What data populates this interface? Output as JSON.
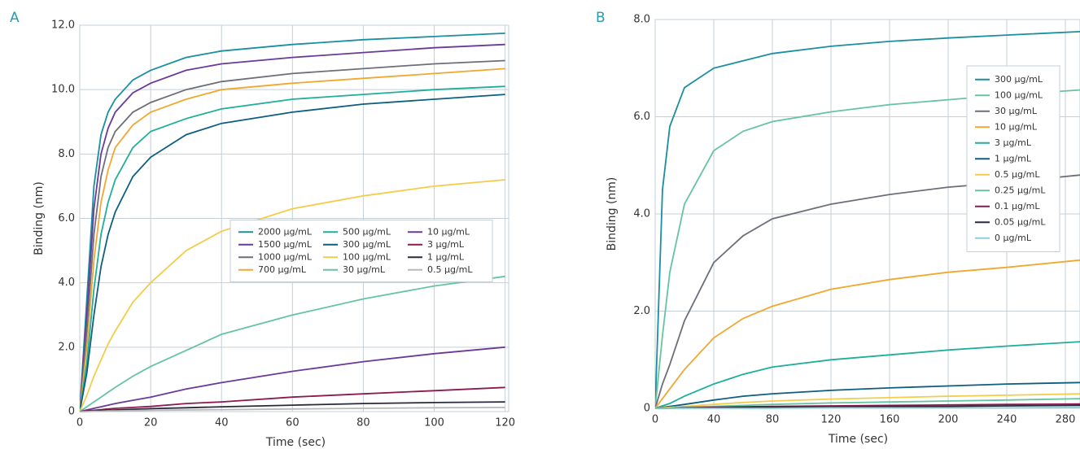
{
  "chart_data": [
    {
      "type": "line",
      "panel_label": "A",
      "xlabel": "Time (sec)",
      "ylabel": "Binding (nm)",
      "x": [
        0,
        2,
        4,
        6,
        8,
        10,
        15,
        20,
        30,
        40,
        60,
        80,
        100,
        120
      ],
      "xlim": [
        0,
        121
      ],
      "xticks": [
        0,
        20,
        40,
        60,
        80,
        100,
        120
      ],
      "ylim": [
        0,
        12
      ],
      "yticks": [
        0,
        {
          "value": 2,
          "label": "2.0"
        },
        {
          "value": 4,
          "label": "4.0"
        },
        {
          "value": 6,
          "label": "6.0"
        },
        {
          "value": 8,
          "label": "8.0"
        },
        {
          "value": 10,
          "label": "10.0"
        },
        {
          "value": 12,
          "label": "12.0"
        }
      ],
      "grid": true,
      "legend": "center right",
      "legend_columns": 3,
      "series": [
        {
          "name": "2000 µg/mL",
          "color": "#1a8fa0",
          "values": [
            0,
            3.5,
            7.0,
            8.6,
            9.3,
            9.7,
            10.3,
            10.6,
            11.0,
            11.2,
            11.4,
            11.55,
            11.65,
            11.75
          ]
        },
        {
          "name": "1500 µg/mL",
          "color": "#6a3a9a",
          "values": [
            0,
            3.0,
            6.3,
            8.0,
            8.8,
            9.3,
            9.9,
            10.2,
            10.6,
            10.8,
            11.0,
            11.15,
            11.3,
            11.4
          ]
        },
        {
          "name": "1000 µg/mL",
          "color": "#6e6e7a",
          "values": [
            0,
            2.5,
            5.5,
            7.3,
            8.2,
            8.7,
            9.3,
            9.6,
            10.0,
            10.25,
            10.5,
            10.65,
            10.8,
            10.9
          ]
        },
        {
          "name": "700 µg/mL",
          "color": "#f0a830",
          "values": [
            0,
            2.0,
            4.7,
            6.5,
            7.5,
            8.2,
            8.9,
            9.3,
            9.7,
            10.0,
            10.2,
            10.35,
            10.5,
            10.65
          ]
        },
        {
          "name": "500 µg/mL",
          "color": "#1fae9a",
          "values": [
            0,
            1.5,
            3.8,
            5.5,
            6.5,
            7.2,
            8.2,
            8.7,
            9.1,
            9.4,
            9.7,
            9.85,
            10.0,
            10.1
          ]
        },
        {
          "name": "300 µg/mL",
          "color": "#0e5e80",
          "values": [
            0,
            1.2,
            3.0,
            4.5,
            5.5,
            6.2,
            7.3,
            7.9,
            8.6,
            8.95,
            9.3,
            9.55,
            9.7,
            9.85
          ]
        },
        {
          "name": "100 µg/mL",
          "color": "#f2cc4a",
          "values": [
            0,
            0.5,
            1.1,
            1.6,
            2.1,
            2.5,
            3.4,
            4.0,
            5.0,
            5.6,
            6.3,
            6.7,
            7.0,
            7.2
          ]
        },
        {
          "name": "30 µg/mL",
          "color": "#66c4a0",
          "values": [
            0,
            0.15,
            0.3,
            0.45,
            0.6,
            0.75,
            1.1,
            1.4,
            1.9,
            2.4,
            3.0,
            3.5,
            3.9,
            4.2
          ]
        },
        {
          "name": "10 µg/mL",
          "color": "#6a3a9a",
          "values": [
            0,
            0.05,
            0.1,
            0.15,
            0.2,
            0.25,
            0.35,
            0.45,
            0.7,
            0.9,
            1.25,
            1.55,
            1.8,
            2.0
          ]
        },
        {
          "name": "3 µg/mL",
          "color": "#8a1a50",
          "values": [
            0,
            0.02,
            0.04,
            0.06,
            0.08,
            0.1,
            0.13,
            0.16,
            0.25,
            0.3,
            0.45,
            0.55,
            0.65,
            0.75
          ]
        },
        {
          "name": "1 µg/mL",
          "color": "#2a2a3a",
          "values": [
            0,
            0.01,
            0.02,
            0.03,
            0.04,
            0.05,
            0.07,
            0.09,
            0.12,
            0.15,
            0.2,
            0.25,
            0.28,
            0.3
          ]
        },
        {
          "name": "0.5 µg/mL",
          "color": "#b8b8b8",
          "values": [
            0,
            0,
            0.01,
            0.01,
            0.02,
            0.02,
            0.03,
            0.04,
            0.05,
            0.06,
            0.08,
            0.1,
            0.12,
            0.13
          ]
        }
      ]
    },
    {
      "type": "line",
      "panel_label": "B",
      "xlabel": "Time (sec)",
      "ylabel": "Binding (nm)",
      "x": [
        0,
        5,
        10,
        20,
        40,
        60,
        80,
        120,
        160,
        200,
        240,
        290
      ],
      "xlim": [
        0,
        290
      ],
      "xticks": [
        0,
        40,
        80,
        120,
        160,
        200,
        240,
        280
      ],
      "ylim": [
        0,
        8
      ],
      "yticks": [
        0,
        {
          "value": 2,
          "label": "2.0"
        },
        {
          "value": 4,
          "label": "4.0"
        },
        {
          "value": 6,
          "label": "6.0"
        },
        {
          "value": 8,
          "label": "8.0"
        }
      ],
      "grid": true,
      "legend": "upper right",
      "legend_columns": 1,
      "series": [
        {
          "name": "300 µg/mL",
          "color": "#1a8fa0",
          "values": [
            0,
            4.5,
            5.8,
            6.6,
            7.0,
            7.15,
            7.3,
            7.45,
            7.55,
            7.62,
            7.68,
            7.75
          ]
        },
        {
          "name": "100 µg/mL",
          "color": "#66c4a0",
          "values": [
            0,
            1.5,
            2.8,
            4.2,
            5.3,
            5.7,
            5.9,
            6.1,
            6.25,
            6.35,
            6.45,
            6.55
          ]
        },
        {
          "name": "30 µg/mL",
          "color": "#6e6e7a",
          "values": [
            0,
            0.5,
            0.9,
            1.8,
            3.0,
            3.55,
            3.9,
            4.2,
            4.4,
            4.55,
            4.65,
            4.8
          ]
        },
        {
          "name": "10 µg/mL",
          "color": "#f0a830",
          "values": [
            0,
            0.2,
            0.4,
            0.8,
            1.45,
            1.85,
            2.1,
            2.45,
            2.65,
            2.8,
            2.9,
            3.05
          ]
        },
        {
          "name": "3 µg/mL",
          "color": "#1fae9a",
          "values": [
            0,
            0.05,
            0.1,
            0.25,
            0.5,
            0.7,
            0.85,
            1.0,
            1.1,
            1.2,
            1.28,
            1.37
          ]
        },
        {
          "name": "1 µg/mL",
          "color": "#0e5e80",
          "values": [
            0,
            0.02,
            0.04,
            0.08,
            0.17,
            0.25,
            0.3,
            0.37,
            0.42,
            0.46,
            0.5,
            0.53
          ]
        },
        {
          "name": "0.5 µg/mL",
          "color": "#f2cc4a",
          "values": [
            0,
            0.01,
            0.02,
            0.04,
            0.08,
            0.12,
            0.15,
            0.19,
            0.22,
            0.25,
            0.27,
            0.3
          ]
        },
        {
          "name": "0.25 µg/mL",
          "color": "#66c4a0",
          "values": [
            0,
            0,
            0.01,
            0.02,
            0.04,
            0.06,
            0.08,
            0.11,
            0.13,
            0.15,
            0.17,
            0.2
          ]
        },
        {
          "name": "0.1 µg/mL",
          "color": "#8a1a50",
          "values": [
            0,
            0,
            0,
            0.01,
            0.02,
            0.03,
            0.04,
            0.05,
            0.06,
            0.07,
            0.08,
            0.09
          ]
        },
        {
          "name": "0.05 µg/mL",
          "color": "#2a2a3a",
          "values": [
            0,
            0,
            0,
            0.01,
            0.01,
            0.02,
            0.02,
            0.03,
            0.04,
            0.04,
            0.05,
            0.06
          ]
        },
        {
          "name": "0 µg/mL",
          "color": "#8ed0d8",
          "values": [
            0,
            0,
            0,
            0,
            0,
            0,
            0,
            0.01,
            0.01,
            0.01,
            0.01,
            0.02
          ]
        }
      ]
    }
  ]
}
